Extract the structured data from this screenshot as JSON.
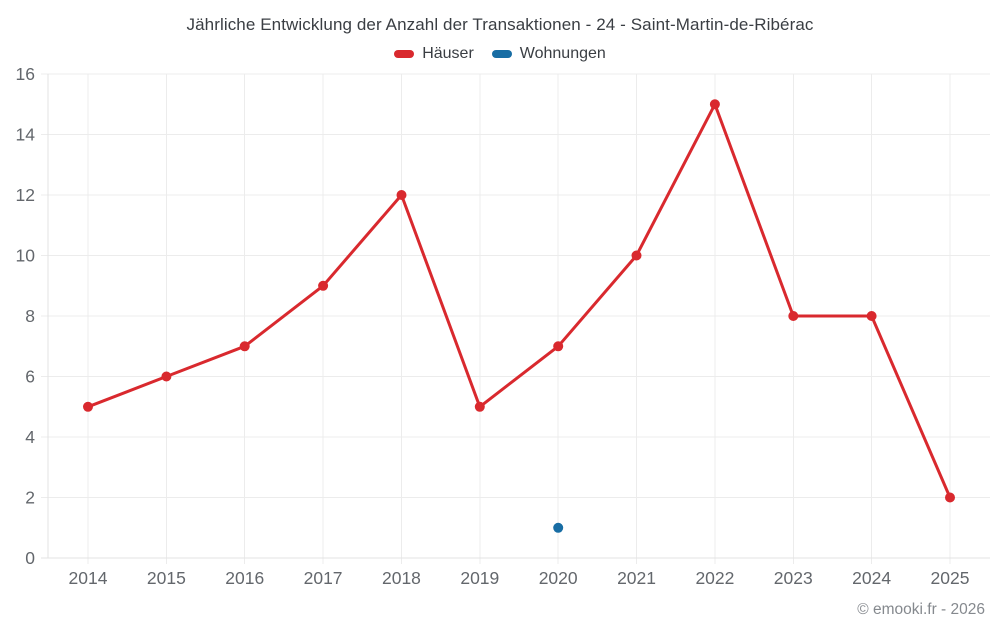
{
  "page": {
    "watermark": "© emooki.fr - 2026"
  },
  "chart_data": {
    "type": "line",
    "title": "Jährliche Entwicklung der Anzahl der Transaktionen - 24 - Saint-Martin-de-Ribérac",
    "categories": [
      "2014",
      "2015",
      "2016",
      "2017",
      "2018",
      "2019",
      "2020",
      "2021",
      "2022",
      "2023",
      "2024",
      "2025"
    ],
    "series": [
      {
        "name": "Häuser",
        "color": "#d9292e",
        "values": [
          5,
          6,
          7,
          9,
          12,
          5,
          7,
          10,
          15,
          8,
          8,
          2
        ]
      },
      {
        "name": "Wohnungen",
        "color": "#186da4",
        "values": [
          null,
          null,
          null,
          null,
          null,
          null,
          1,
          null,
          null,
          null,
          null,
          null
        ]
      }
    ],
    "xlabel": "",
    "ylabel": "",
    "ylim": [
      0,
      16
    ],
    "ytick_step": 2,
    "grid": true,
    "legend_position": "top",
    "grid_color": "#ececec",
    "axis_color": "#e3e3e3",
    "tick_label_color": "#63676c"
  }
}
